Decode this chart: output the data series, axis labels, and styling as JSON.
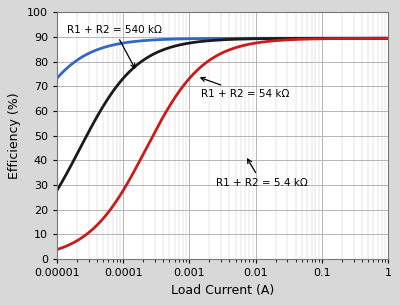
{
  "title": "",
  "xlabel": "Load Current (A)",
  "ylabel": "Efficiency (%)",
  "xlim": [
    1e-05,
    1
  ],
  "ylim": [
    0,
    100
  ],
  "yticks": [
    0,
    10,
    20,
    30,
    40,
    50,
    60,
    70,
    80,
    90,
    100
  ],
  "curves": [
    {
      "label": "R1 + R2 = 540 kΩ",
      "color": "#3468c0",
      "I_q": 2.22e-06,
      "ann_text": "R1 + R2 = 540 kΩ",
      "ann_textxy": [
        1.4e-05,
        91
      ],
      "ann_arrowxy": [
        0.00016,
        76
      ]
    },
    {
      "label": "R1 + R2 = 54 kΩ",
      "color": "#1a1a1a",
      "I_q": 2.22e-05,
      "ann_text": "R1 + R2 = 54 kΩ",
      "ann_textxy": [
        0.0015,
        65
      ],
      "ann_arrowxy": [
        0.0013,
        74
      ]
    },
    {
      "label": "R1 + R2 = 5.4 kΩ",
      "color": "#cc1a1a",
      "I_q": 0.000222,
      "ann_text": "R1 + R2 = 5.4 kΩ",
      "ann_textxy": [
        0.0025,
        33
      ],
      "ann_arrowxy": [
        0.007,
        42
      ]
    }
  ],
  "efficiency_max": 89.5,
  "background_color": "#d8d8d8",
  "plot_bg_color": "#ffffff",
  "grid_major_color": "#aaaaaa",
  "grid_minor_color": "#cccccc",
  "linewidth": 2.0,
  "xlabel_fontsize": 9,
  "ylabel_fontsize": 9,
  "tick_labelsize": 8,
  "ann_fontsize": 7.5
}
